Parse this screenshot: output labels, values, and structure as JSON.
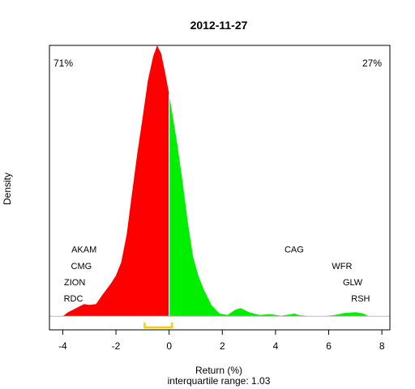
{
  "chart_data": {
    "type": "area",
    "title": "2012-11-27",
    "xlabel": "Return (%)",
    "ylabel": "Density",
    "subtitle": "interquartile range: 1.03",
    "xlim": [
      -4.5,
      8.3
    ],
    "ylim": [
      -0.05,
      1.0
    ],
    "x_ticks": [
      -4,
      -2,
      0,
      2,
      4,
      6,
      8
    ],
    "x_tick_labels": [
      "-4",
      "-2",
      "0",
      "2",
      "4",
      "6",
      "8"
    ],
    "split_at": 0,
    "negative_share_label": "71%",
    "positive_share_label": "27%",
    "colors": {
      "negative": "#ff0000",
      "positive": "#00ee00",
      "iqr": "#ffcc00",
      "neg_text": "#ff0000",
      "pos_text": "#008800"
    },
    "iqr": [
      -0.92,
      0.11
    ],
    "density": [
      {
        "x": -4.0,
        "y": 0.0
      },
      {
        "x": -3.8,
        "y": 0.015
      },
      {
        "x": -3.5,
        "y": 0.03
      },
      {
        "x": -3.2,
        "y": 0.045
      },
      {
        "x": -3.0,
        "y": 0.042
      },
      {
        "x": -2.75,
        "y": 0.045
      },
      {
        "x": -2.5,
        "y": 0.08
      },
      {
        "x": -2.2,
        "y": 0.12
      },
      {
        "x": -2.0,
        "y": 0.15
      },
      {
        "x": -1.8,
        "y": 0.2
      },
      {
        "x": -1.6,
        "y": 0.3
      },
      {
        "x": -1.4,
        "y": 0.45
      },
      {
        "x": -1.2,
        "y": 0.6
      },
      {
        "x": -1.0,
        "y": 0.73
      },
      {
        "x": -0.8,
        "y": 0.87
      },
      {
        "x": -0.6,
        "y": 0.96
      },
      {
        "x": -0.45,
        "y": 1.0
      },
      {
        "x": -0.3,
        "y": 0.97
      },
      {
        "x": -0.15,
        "y": 0.9
      },
      {
        "x": 0.0,
        "y": 0.82
      },
      {
        "x": 0.15,
        "y": 0.73
      },
      {
        "x": 0.3,
        "y": 0.64
      },
      {
        "x": 0.5,
        "y": 0.5
      },
      {
        "x": 0.7,
        "y": 0.35
      },
      {
        "x": 0.9,
        "y": 0.22
      },
      {
        "x": 1.1,
        "y": 0.15
      },
      {
        "x": 1.3,
        "y": 0.1
      },
      {
        "x": 1.6,
        "y": 0.04
      },
      {
        "x": 1.9,
        "y": 0.01
      },
      {
        "x": 2.2,
        "y": 0.005
      },
      {
        "x": 2.5,
        "y": 0.025
      },
      {
        "x": 2.7,
        "y": 0.03
      },
      {
        "x": 3.0,
        "y": 0.015
      },
      {
        "x": 3.4,
        "y": 0.005
      },
      {
        "x": 3.8,
        "y": 0.008
      },
      {
        "x": 4.2,
        "y": 0.002
      },
      {
        "x": 4.5,
        "y": 0.006
      },
      {
        "x": 4.7,
        "y": 0.01
      },
      {
        "x": 4.9,
        "y": 0.004
      },
      {
        "x": 5.3,
        "y": 0.0
      },
      {
        "x": 5.8,
        "y": 0.0
      },
      {
        "x": 6.2,
        "y": 0.004
      },
      {
        "x": 6.6,
        "y": 0.012
      },
      {
        "x": 7.0,
        "y": 0.015
      },
      {
        "x": 7.3,
        "y": 0.01
      },
      {
        "x": 7.5,
        "y": 0.0
      }
    ],
    "annotations": [
      {
        "label": "AKAM",
        "x": -3.2,
        "y": 0.235
      },
      {
        "label": "CMG",
        "x": -3.3,
        "y": 0.175
      },
      {
        "label": "ZION",
        "x": -3.55,
        "y": 0.115
      },
      {
        "label": "RDC",
        "x": -3.6,
        "y": 0.055
      },
      {
        "label": "CAG",
        "x": 4.7,
        "y": 0.235
      },
      {
        "label": "WFR",
        "x": 6.5,
        "y": 0.175
      },
      {
        "label": "GLW",
        "x": 6.9,
        "y": 0.115
      },
      {
        "label": "RSH",
        "x": 7.2,
        "y": 0.055
      }
    ]
  }
}
